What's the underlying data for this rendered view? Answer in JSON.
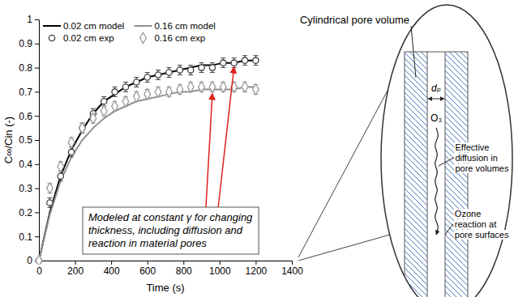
{
  "chart_data": {
    "type": "line",
    "xlabel": "Time (s)",
    "ylabel": "C∞/Cin (-)",
    "xlim": [
      0,
      1400
    ],
    "ylim": [
      0,
      1
    ],
    "xticks": [
      0,
      200,
      400,
      600,
      800,
      1000,
      1200,
      1400
    ],
    "yticks": [
      0,
      0.1,
      0.2,
      0.3,
      0.4,
      0.5,
      0.6,
      0.7,
      0.8,
      0.9,
      1
    ],
    "grid": false,
    "legend": "top-left",
    "x": [
      0,
      60,
      120,
      180,
      240,
      300,
      360,
      420,
      480,
      540,
      600,
      660,
      720,
      780,
      840,
      900,
      960,
      1020,
      1080,
      1140,
      1200
    ],
    "series": [
      {
        "name": "0.02 cm model",
        "type": "line",
        "color": "#000000",
        "line_style": "solid",
        "marker": "none",
        "values": [
          0,
          0.2,
          0.35,
          0.46,
          0.54,
          0.61,
          0.66,
          0.69,
          0.72,
          0.74,
          0.76,
          0.77,
          0.78,
          0.79,
          0.8,
          0.81,
          0.81,
          0.82,
          0.82,
          0.83,
          0.83
        ]
      },
      {
        "name": "0.16 cm model",
        "type": "line",
        "color": "#8f8f8f",
        "line_style": "solid",
        "marker": "none",
        "values": [
          0,
          0.19,
          0.33,
          0.43,
          0.5,
          0.55,
          0.59,
          0.62,
          0.64,
          0.66,
          0.67,
          0.68,
          0.69,
          0.7,
          0.7,
          0.71,
          0.71,
          0.71,
          0.71,
          0.72,
          0.72
        ]
      },
      {
        "name": "0.02 cm exp",
        "type": "scatter",
        "color": "#404040",
        "line_style": "none",
        "marker": "circle",
        "values": [
          0,
          0.24,
          0.35,
          0.45,
          0.55,
          0.61,
          0.66,
          0.7,
          0.72,
          0.74,
          0.76,
          0.77,
          0.78,
          0.79,
          0.79,
          0.8,
          0.8,
          0.82,
          0.82,
          0.83,
          0.83
        ],
        "errors": [
          null,
          0.02,
          0.02,
          0.02,
          0.02,
          0.02,
          0.02,
          0.02,
          0.02,
          0.02,
          0.02,
          0.02,
          0.02,
          0.02,
          0.02,
          0.02,
          0.02,
          0.02,
          0.02,
          0.02,
          0.02
        ]
      },
      {
        "name": "0.16 cm exp",
        "type": "scatter",
        "color": "#9b9b9b",
        "line_style": "none",
        "marker": "diamond",
        "values": [
          0,
          0.3,
          0.39,
          0.49,
          0.55,
          0.59,
          0.62,
          0.64,
          0.66,
          0.68,
          0.69,
          0.7,
          0.7,
          0.71,
          0.72,
          0.72,
          0.72,
          0.72,
          0.72,
          0.72,
          0.71
        ],
        "errors": [
          null,
          0.02,
          0.02,
          0.02,
          0.02,
          0.02,
          0.02,
          0.02,
          0.02,
          0.02,
          0.02,
          0.02,
          0.02,
          0.02,
          0.02,
          0.02,
          0.02,
          0.02,
          0.02,
          0.02,
          0.02
        ]
      }
    ],
    "annotation": [
      "Modeled at constant γ for changing",
      "thickness, including diffusion and",
      "reaction in material pores"
    ]
  },
  "diagram": {
    "pore_label": "Cylindrical pore volume",
    "diameter_label": "dₚ",
    "ozone_label": "O₃",
    "diffusion_label": [
      "Effective",
      "diffusion in",
      "pore volumes"
    ],
    "reaction_label": [
      "Ozone",
      "reaction at",
      "pore surfaces"
    ]
  }
}
